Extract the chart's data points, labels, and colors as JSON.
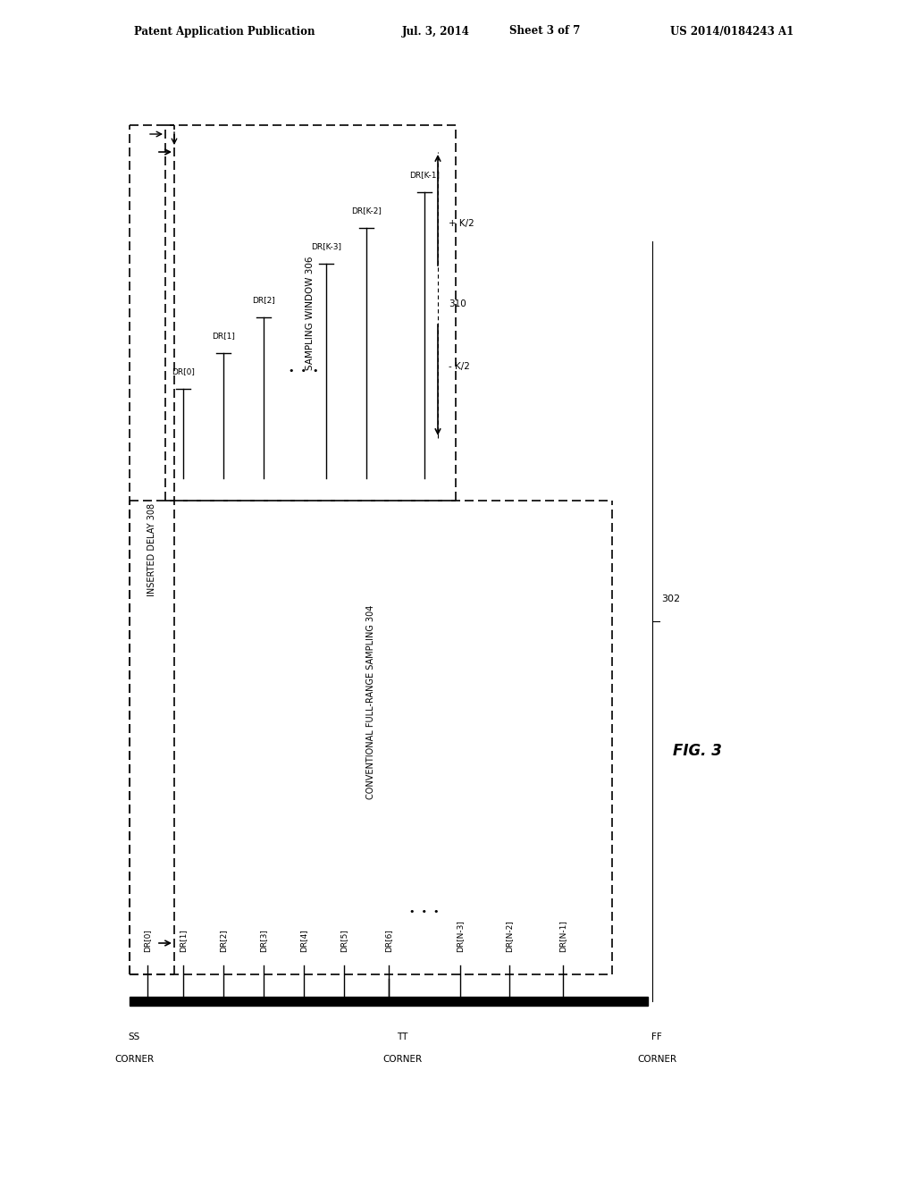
{
  "title": "Patent Application Publication    Jul. 3, 2014   Sheet 3 of 7        US 2014/0184243 A1",
  "fig_label": "FIG. 3",
  "background": "#ffffff",
  "header_text": "Patent Application Publication",
  "header_date": "Jul. 3, 2014",
  "header_sheet": "Sheet 3 of 7",
  "header_patent": "US 2014/0184243 A1",
  "label_308": "INSERTED DELAY 308",
  "label_306": "SAMPLING WINDOW 306",
  "label_310": "310",
  "label_304": "CONVENTIONAL FULL-RANGE SAMPLING 304",
  "label_302": "302",
  "corner_ss": "SS\nCORNER",
  "corner_tt": "TT\nCORNER",
  "corner_ff": "FF\nCORNER",
  "top_row_labels": [
    "DR[0]",
    "DR[1]",
    "DR[2]",
    "DR[K-3]",
    "DR[K-2]",
    "DR[K-1]"
  ],
  "bottom_row_labels": [
    "DR[0]",
    "DR[1]",
    "DR[2]",
    "DR[3]",
    "DR[4]",
    "DR[5]",
    "DR[6]",
    "DR[N-3]",
    "DR[N-2]",
    "DR[N-1]"
  ],
  "plus_k2": "+ K/2",
  "minus_k2": "- K/2"
}
